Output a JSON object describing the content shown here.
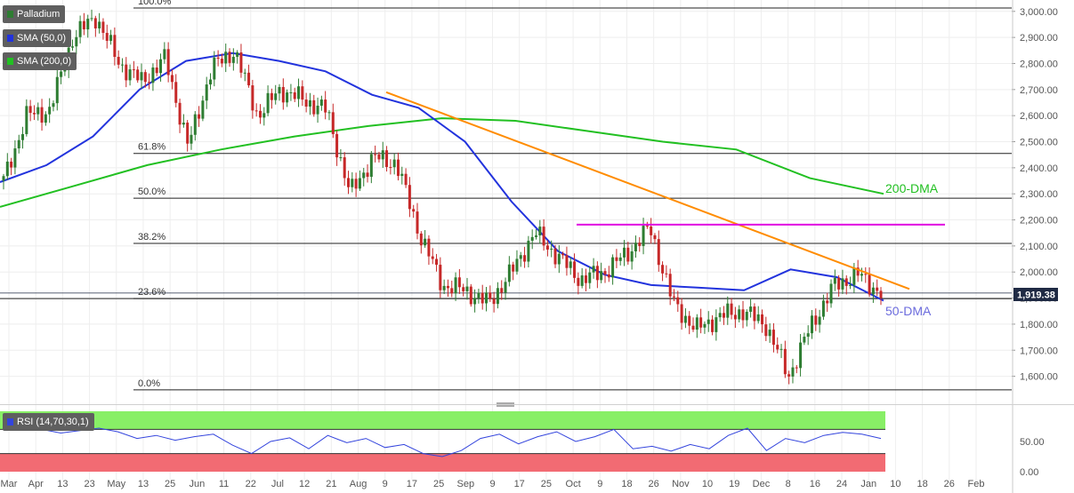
{
  "chart_data": [
    {
      "type": "candlestick",
      "title": "Palladium",
      "legend": [
        {
          "name": "Palladium",
          "color": "#2e7d32"
        },
        {
          "name": "SMA (50,0)",
          "color": "#2233dd"
        },
        {
          "name": "SMA (200,0)",
          "color": "#22c022"
        }
      ],
      "ylim": [
        1510,
        3030
      ],
      "y_ticks": [
        1600,
        1700,
        1800,
        1900,
        2000,
        2100,
        2200,
        2300,
        2400,
        2500,
        2600,
        2700,
        2800,
        2900,
        3000
      ],
      "y_tick_labels": [
        "1,600.00",
        "1,700.00",
        "1,800.00",
        "1,900.00",
        "2,000.00",
        "2,100.00",
        "2,200.00",
        "2,300.00",
        "2,400.00",
        "2,500.00",
        "2,600.00",
        "2,700.00",
        "2,800.00",
        "2,900.00",
        "3,000.00"
      ],
      "x_tick_labels": [
        "Mar",
        "Apr",
        "13",
        "23",
        "May",
        "13",
        "25",
        "Jun",
        "11",
        "22",
        "Jul",
        "12",
        "21",
        "Aug",
        "9",
        "17",
        "25",
        "Sep",
        "9",
        "17",
        "25",
        "Oct",
        "9",
        "18",
        "26",
        "Nov",
        "10",
        "19",
        "Dec",
        "8",
        "16",
        "24",
        "Jan",
        "10",
        "18",
        "26",
        "Feb"
      ],
      "last_price": {
        "value": 1919.38,
        "label": "1,919.38",
        "color": "#1f2a44"
      },
      "fibonacci": [
        {
          "label": "100.0%",
          "value": 3013
        },
        {
          "label": "61.8%",
          "value": 2455
        },
        {
          "label": "50.0%",
          "value": 2283
        },
        {
          "label": "38.2%",
          "value": 2110
        },
        {
          "label": "23.6%",
          "value": 1898
        },
        {
          "label": "0.0%",
          "value": 1548
        }
      ],
      "annotations": [
        {
          "text": "200-DMA",
          "color": "#22c022"
        },
        {
          "text": "50-DMA",
          "color": "#6b6bdd"
        }
      ],
      "trendline_color": "#ff8c00",
      "resistance_color": "#e100e1",
      "sma50": [
        2345,
        2410,
        2520,
        2700,
        2810,
        2840,
        2810,
        2770,
        2680,
        2630,
        2500,
        2270,
        2080,
        1990,
        1950,
        1940,
        1930,
        2010,
        1980,
        1890
      ],
      "sma200": [
        2250,
        2330,
        2410,
        2470,
        2520,
        2560,
        2590,
        2580,
        2540,
        2500,
        2470,
        2360,
        2300
      ],
      "candles_close": [
        2350,
        2600,
        2620,
        2900,
        2980,
        2800,
        2730,
        2820,
        2480,
        2780,
        2850,
        2600,
        2700,
        2660,
        2620,
        2300,
        2440,
        2420,
        2150,
        1950,
        1930,
        1880,
        2000,
        2150,
        2060,
        1970,
        2000,
        2070,
        2170,
        1880,
        1780,
        1830,
        1850,
        1800,
        1600,
        1800,
        1950,
        1990,
        1919
      ]
    },
    {
      "type": "line",
      "title": "RSI (14,70,30,1)",
      "ylim": [
        0,
        100
      ],
      "y_ticks": [
        0,
        50
      ],
      "y_tick_labels": [
        "0.00",
        "50.00"
      ],
      "overbought": 70,
      "oversold": 30,
      "values": [
        75,
        72,
        70,
        64,
        68,
        72,
        66,
        55,
        60,
        52,
        58,
        62,
        44,
        30,
        50,
        56,
        38,
        60,
        48,
        55,
        40,
        45,
        30,
        25,
        35,
        55,
        62,
        46,
        58,
        66,
        50,
        58,
        70,
        38,
        42,
        34,
        45,
        38,
        60,
        72,
        35,
        55,
        48,
        60,
        65,
        62,
        55
      ]
    }
  ]
}
